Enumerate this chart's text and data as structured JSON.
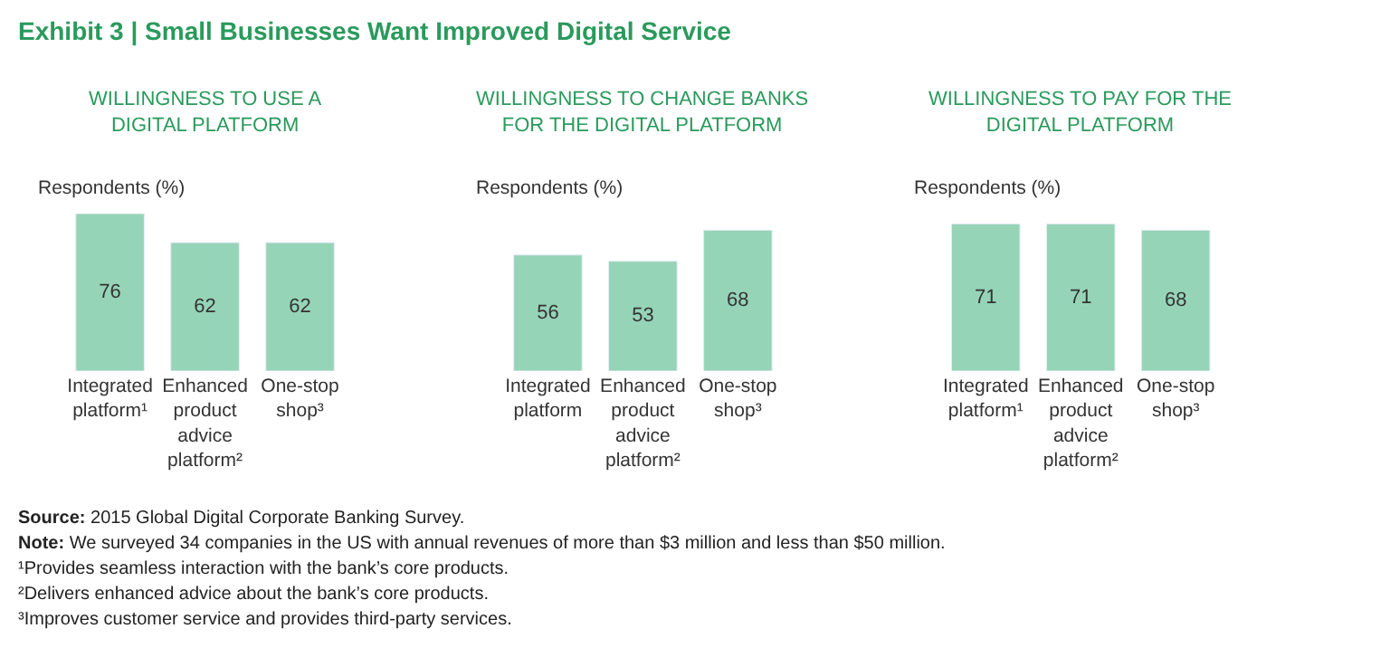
{
  "chart_data": [
    {
      "type": "bar",
      "title": "WILLINGNESS TO USE A DIGITAL PLATFORM",
      "ylabel": "Respondents (%)",
      "categories": [
        "Integrated platform¹",
        "Enhanced product advice platform²",
        "One-stop shop³"
      ],
      "values": [
        76,
        62,
        62
      ],
      "color": "#96d4b8",
      "data_labels": true,
      "tick_labels": "x",
      "annotations": [
        "Exhibit 3 | Small Businesses Want Improved Digital Service",
        "Source: 2015 Global Digital Corporate Banking Survey.",
        "Note: We surveyed 34 companies in the US with annual revenues of more than $3 million and less than $50 million.",
        "¹Provides seamless interaction with the bank’s core products.",
        "²Delivers enhanced advice about the bank’s core products.",
        "³Improves customer service and provides third-party services."
      ]
    },
    {
      "type": "bar",
      "title": "WILLINGNESS TO CHANGE BANKS FOR THE DIGITAL PLATFORM",
      "ylabel": "Respondents (%)",
      "categories": [
        "Integrated platform",
        "Enhanced product advice platform²",
        "One-stop shop³"
      ],
      "values": [
        56,
        53,
        68
      ],
      "color": "#96d4b8",
      "data_labels": true,
      "tick_labels": "x"
    },
    {
      "type": "bar",
      "title": "WILLINGNESS TO PAY FOR THE DIGITAL PLATFORM",
      "ylabel": "Respondents (%)",
      "categories": [
        "Integrated platform¹",
        "Enhanced product advice platform²",
        "One-stop shop³"
      ],
      "values": [
        71,
        71,
        68
      ],
      "color": "#96d4b8",
      "data_labels": true,
      "tick_labels": "x"
    }
  ]
}
